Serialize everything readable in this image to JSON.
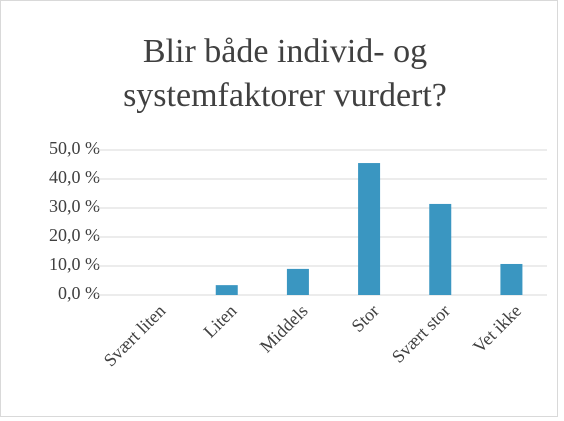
{
  "chart_data": {
    "type": "bar",
    "title": "Blir både individ- og systemfaktorer vurdert?",
    "categories": [
      "Svært liten",
      "Liten",
      "Middels",
      "Stor",
      "Svært stor",
      "Vet ikke"
    ],
    "values": [
      0,
      3.4,
      9.0,
      45.5,
      31.4,
      10.7
    ],
    "color": "#3a96c1",
    "ylim": [
      0,
      50
    ],
    "yticks": [
      {
        "value": 0,
        "label": "0,0 %"
      },
      {
        "value": 10,
        "label": "10,0 %"
      },
      {
        "value": 20,
        "label": "20,0 %"
      },
      {
        "value": 30,
        "label": "30,0 %"
      },
      {
        "value": 40,
        "label": "40,0 %"
      },
      {
        "value": 50,
        "label": "50,0 %"
      }
    ],
    "grid": true
  }
}
